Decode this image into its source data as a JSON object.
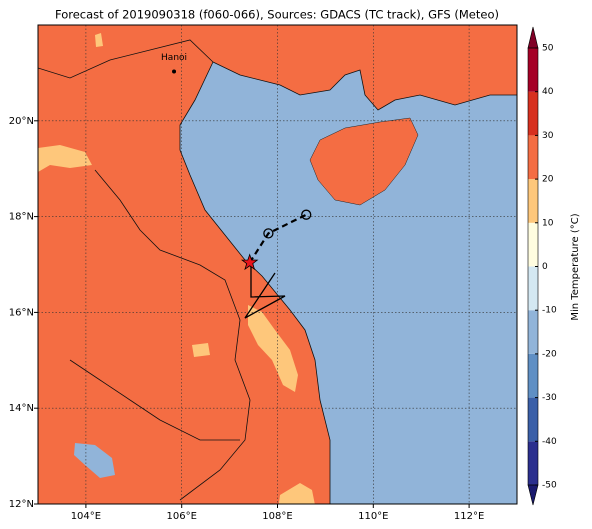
{
  "map": {
    "title": "Forecast of 2019090318 (f060-066), Sources: GDACS (TC track), GFS (Meteo)",
    "lonlim": [
      103,
      113
    ],
    "latlim": [
      12,
      22
    ],
    "lonticks": [
      {
        "value": 104,
        "label": "104°E"
      },
      {
        "value": 106,
        "label": "106°E"
      },
      {
        "value": 108,
        "label": "108°E"
      },
      {
        "value": 110,
        "label": "110°E"
      },
      {
        "value": 112,
        "label": "112°E"
      }
    ],
    "latticks": [
      {
        "value": 12,
        "label": "12°N"
      },
      {
        "value": 14,
        "label": "14°N"
      },
      {
        "value": 16,
        "label": "16°N"
      },
      {
        "value": 18,
        "label": "18°N"
      },
      {
        "value": 20,
        "label": "20°N"
      }
    ],
    "grid": true,
    "track": {
      "lon": [
        107.42,
        107.81,
        108.6
      ],
      "lat": [
        17.04,
        17.65,
        18.04
      ]
    },
    "city": {
      "name": "Hanoi",
      "lon": 105.84,
      "lat": 21.03
    }
  },
  "colorbar": {
    "label": "Min Temperature (°C)",
    "levels": [
      -50,
      -40,
      -30,
      -20,
      -10,
      0,
      10,
      20,
      30,
      40,
      50
    ],
    "colors": [
      "#2b2f8e",
      "#3a5fa8",
      "#5f8fc4",
      "#91b4d9",
      "#d4e8f2",
      "#fffde0",
      "#fec77b",
      "#f46d43",
      "#d7301f",
      "#a50026"
    ],
    "under_color": "#1a1a6e",
    "over_color": "#800026",
    "ticks": [
      -50,
      -40,
      -30,
      -20,
      -10,
      0,
      10,
      20,
      30,
      40,
      50
    ]
  }
}
